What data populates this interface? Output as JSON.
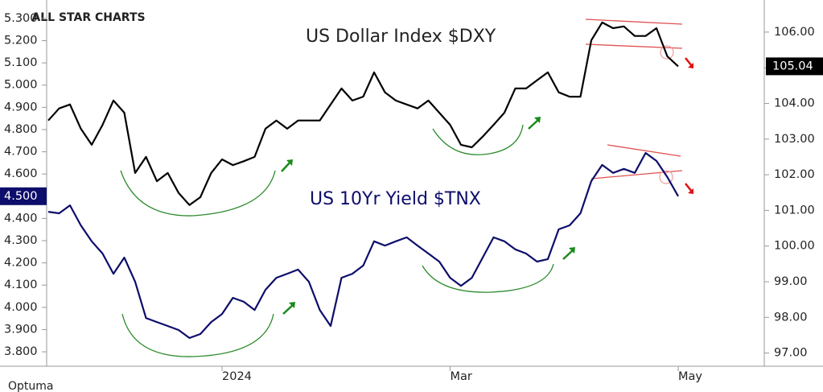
{
  "chart_data": {
    "type": "line",
    "logo": "ALL STAR CHARTS",
    "source": "Optuma",
    "annotations": [
      "US Dollar Index $DXY",
      "US 10Yr Yield $TNX"
    ],
    "categories": [
      null,
      null,
      null,
      null,
      null,
      null,
      null,
      null,
      null,
      null,
      null,
      null,
      null,
      null,
      null,
      null,
      "2024",
      null,
      null,
      null,
      null,
      null,
      null,
      null,
      null,
      null,
      null,
      null,
      null,
      null,
      null,
      null,
      null,
      null,
      null,
      null,
      null,
      "Mar",
      null,
      null,
      null,
      null,
      null,
      null,
      null,
      null,
      null,
      null,
      null,
      null,
      null,
      null,
      null,
      null,
      null,
      null,
      null,
      null,
      "May"
    ],
    "series": [
      {
        "name": "US Dollar Index $DXY",
        "color": "#000000",
        "axis": "y2",
        "values": [
          103.52,
          103.86,
          103.97,
          103.29,
          102.84,
          103.4,
          104.08,
          103.74,
          102.05,
          102.5,
          101.82,
          102.05,
          101.49,
          101.15,
          101.37,
          102.05,
          102.43,
          102.27,
          102.38,
          102.5,
          103.29,
          103.52,
          103.29,
          103.52,
          103.52,
          103.52,
          103.97,
          104.42,
          104.08,
          104.19,
          104.87,
          104.31,
          104.08,
          103.97,
          103.86,
          104.08,
          103.74,
          103.4,
          102.84,
          102.77,
          103.07,
          103.4,
          103.74,
          104.42,
          104.42,
          104.65,
          104.87,
          104.31,
          104.19,
          104.19,
          105.77,
          106.27,
          106.11,
          106.16,
          105.89,
          105.89,
          106.11,
          105.32,
          105.04
        ]
      },
      {
        "name": "US 10Yr Yield $TNX",
        "color": "#0d0d6b",
        "values": [
          4.43,
          4.423,
          4.459,
          4.369,
          4.297,
          4.242,
          4.151,
          4.224,
          4.115,
          3.952,
          3.934,
          3.916,
          3.898,
          3.862,
          3.88,
          3.934,
          3.97,
          4.043,
          4.025,
          3.988,
          4.079,
          4.133,
          4.151,
          4.17,
          4.115,
          3.988,
          3.916,
          4.133,
          4.151,
          4.188,
          4.297,
          4.278,
          4.297,
          4.315,
          4.278,
          4.242,
          4.206,
          4.133,
          4.097,
          4.133,
          4.224,
          4.315,
          4.297,
          4.261,
          4.242,
          4.206,
          4.217,
          4.351,
          4.369,
          4.423,
          4.568,
          4.641,
          4.605,
          4.623,
          4.605,
          4.695,
          4.659,
          4.586,
          4.5
        ],
        "value_labels": [
          null,
          null,
          null,
          null,
          null,
          null,
          null,
          null,
          null,
          null,
          null,
          null,
          null,
          null,
          null,
          null,
          null,
          null,
          null,
          null,
          null,
          null,
          null,
          null,
          null,
          null,
          null,
          null,
          null,
          null,
          null,
          null,
          null,
          null,
          null,
          null,
          null,
          null,
          null,
          null,
          null,
          null,
          null,
          null,
          null,
          null,
          null,
          null,
          null,
          null,
          null,
          null,
          null,
          null,
          null,
          null,
          null,
          null,
          "4.500"
        ]
      }
    ],
    "ylim": [
      3.735,
      5.383
    ],
    "yticks": [
      {
        "value": 3.8,
        "label": "3.800"
      },
      {
        "value": 3.9,
        "label": "3.900"
      },
      {
        "value": 4.0,
        "label": "4.000"
      },
      {
        "value": 4.1,
        "label": "4.100"
      },
      {
        "value": 4.2,
        "label": "4.200"
      },
      {
        "value": 4.3,
        "label": "4.300"
      },
      {
        "value": 4.4,
        "label": "4.400"
      },
      {
        "value": 4.5,
        "label": "4.500"
      },
      {
        "value": 4.6,
        "label": "4.600"
      },
      {
        "value": 4.7,
        "label": "4.700"
      },
      {
        "value": 4.8,
        "label": "4.800"
      },
      {
        "value": 4.9,
        "label": "4.900"
      },
      {
        "value": 5.0,
        "label": "5.000"
      },
      {
        "value": 5.1,
        "label": "5.100"
      },
      {
        "value": 5.2,
        "label": "5.200"
      },
      {
        "value": 5.3,
        "label": "5.300"
      }
    ],
    "y2lim": [
      96.63,
      106.9
    ],
    "y2ticks": [
      {
        "value": 97,
        "label": "97.00"
      },
      {
        "value": 98,
        "label": "98.00"
      },
      {
        "value": 99,
        "label": "99.00"
      },
      {
        "value": 100,
        "label": "100.00"
      },
      {
        "value": 101,
        "label": "101.00"
      },
      {
        "value": 102,
        "label": "102.00"
      },
      {
        "value": 103,
        "label": "103.00"
      },
      {
        "value": 104,
        "label": "104.00"
      },
      {
        "value": 105,
        "label": "105.00"
      },
      {
        "value": 106,
        "label": "106.00"
      }
    ]
  }
}
